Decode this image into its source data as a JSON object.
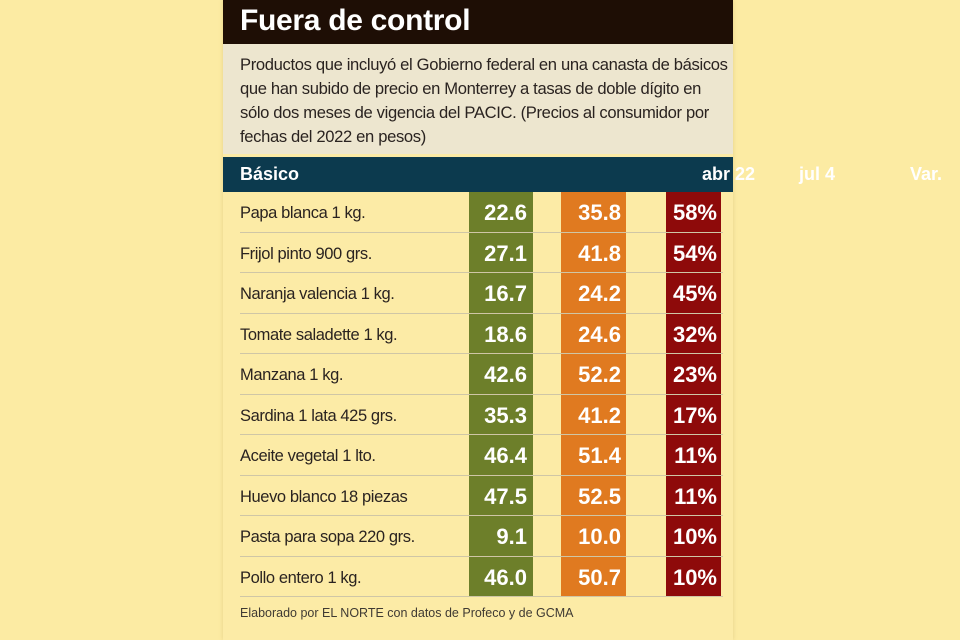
{
  "title": "Fuera de control",
  "intro": "Productos que incluyó el Gobierno federal en una canasta de básicos que han subido de precio en Monterrey a tasas de doble dígito en sólo dos meses de vigencia del PACIC. (Precios al consumidor por fechas del 2022 en pesos)",
  "source": "Elaborado por EL NORTE con datos de Profeco y de GCMA",
  "colors": {
    "title_bar": "#1E0E05",
    "header_bar": "#0C3A4E",
    "abr_column": "#6D7F2A",
    "jul_column": "#E07A20",
    "var_column": "#8E0A0A",
    "background": "#FCEBA6"
  },
  "chart_data": {
    "type": "table",
    "title": "Fuera de control",
    "subtitle": "Productos que incluyó el Gobierno federal en una canasta de básicos que han subido de precio en Monterrey a tasas de doble dígito en sólo dos meses de vigencia del PACIC. (Precios al consumidor por fechas del 2022 en pesos)",
    "columns": [
      "Básico",
      "abr 22",
      "jul 4",
      "Var."
    ],
    "rows": [
      {
        "name": "Papa blanca 1 kg.",
        "abr": "22.6",
        "jul": "35.8",
        "var": "58%"
      },
      {
        "name": "Frijol pinto 900 grs.",
        "abr": "27.1",
        "jul": "41.8",
        "var": "54%"
      },
      {
        "name": "Naranja valencia 1 kg.",
        "abr": "16.7",
        "jul": "24.2",
        "var": "45%"
      },
      {
        "name": "Tomate saladette 1 kg.",
        "abr": "18.6",
        "jul": "24.6",
        "var": "32%"
      },
      {
        "name": "Manzana 1 kg.",
        "abr": "42.6",
        "jul": "52.2",
        "var": "23%"
      },
      {
        "name": "Sardina 1 lata 425 grs.",
        "abr": "35.3",
        "jul": "41.2",
        "var": "17%"
      },
      {
        "name": "Aceite vegetal 1 lto.",
        "abr": "46.4",
        "jul": "51.4",
        "var": "11%"
      },
      {
        "name": "Huevo blanco 18 piezas",
        "abr": "47.5",
        "jul": "52.5",
        "var": "11%"
      },
      {
        "name": "Pasta para sopa 220 grs.",
        "abr": "9.1",
        "jul": "10.0",
        "var": "10%"
      },
      {
        "name": "Pollo entero 1 kg.",
        "abr": "46.0",
        "jul": "50.7",
        "var": "10%"
      }
    ],
    "source": "Elaborado por EL NORTE con datos de Profeco y de GCMA"
  }
}
